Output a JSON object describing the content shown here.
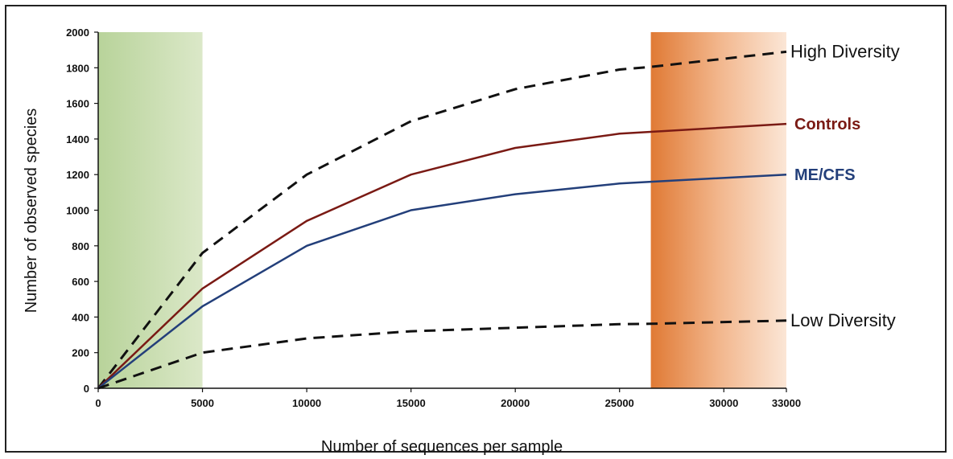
{
  "chart_data": {
    "type": "line",
    "xlabel": "Number of sequences per sample",
    "ylabel": "Number of observed species",
    "xlim": [
      0,
      33000
    ],
    "ylim": [
      0,
      2000
    ],
    "xticks": [
      0,
      5000,
      10000,
      15000,
      20000,
      25000,
      30000,
      33000
    ],
    "yticks": [
      0,
      200,
      400,
      600,
      800,
      1000,
      1200,
      1400,
      1600,
      1800,
      2000
    ],
    "grid": false,
    "shaded_regions": [
      {
        "x": [
          0,
          5000
        ],
        "color": "#c9ddb0"
      },
      {
        "x": [
          26500,
          33000
        ],
        "color": "#e78a4a"
      }
    ],
    "series": [
      {
        "name": "High Diversity",
        "style": "dashed",
        "color": "#111111",
        "x": [
          0,
          5000,
          10000,
          15000,
          20000,
          25000,
          26500,
          33000
        ],
        "y": [
          0,
          760,
          1200,
          1500,
          1680,
          1790,
          1805,
          1890
        ]
      },
      {
        "name": "Controls",
        "style": "solid",
        "color": "#7a1a14",
        "x": [
          0,
          5000,
          10000,
          15000,
          20000,
          25000,
          26500,
          33000
        ],
        "y": [
          0,
          560,
          940,
          1200,
          1350,
          1430,
          1440,
          1485
        ]
      },
      {
        "name": "ME/CFS",
        "style": "solid",
        "color": "#233f7a",
        "x": [
          0,
          5000,
          10000,
          15000,
          20000,
          25000,
          26500,
          33000
        ],
        "y": [
          0,
          460,
          800,
          1000,
          1090,
          1150,
          1160,
          1200
        ]
      },
      {
        "name": "Low Diversity",
        "style": "dashed",
        "color": "#111111",
        "x": [
          0,
          5000,
          10000,
          15000,
          20000,
          25000,
          26500,
          33000
        ],
        "y": [
          0,
          200,
          280,
          320,
          340,
          360,
          362,
          380
        ]
      }
    ]
  }
}
